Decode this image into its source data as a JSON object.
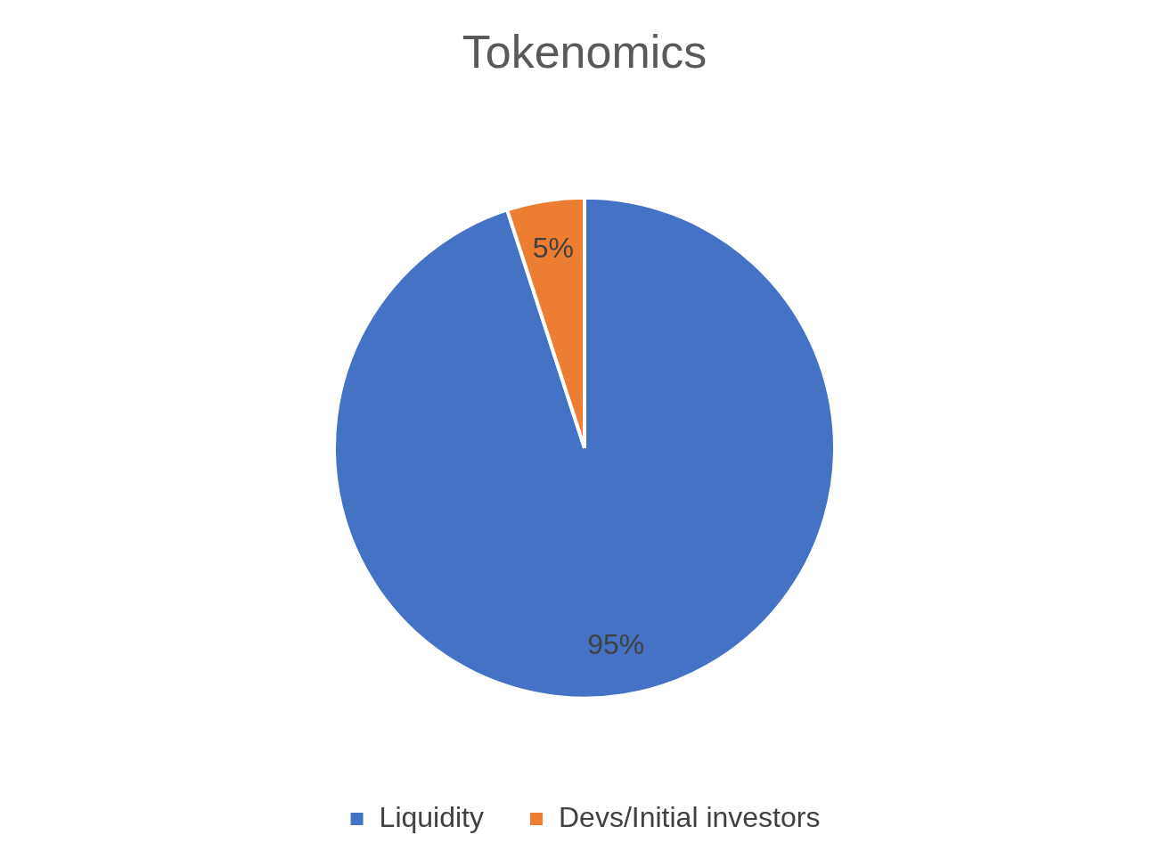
{
  "chart_data": {
    "type": "pie",
    "title": "Tokenomics",
    "categories": [
      "Liquidity",
      "Devs/Initial investors"
    ],
    "values": [
      95,
      5
    ],
    "colors": [
      "#4472c4",
      "#ed7d31"
    ],
    "value_labels": [
      "95%",
      "5%"
    ],
    "legend": "bottom"
  }
}
